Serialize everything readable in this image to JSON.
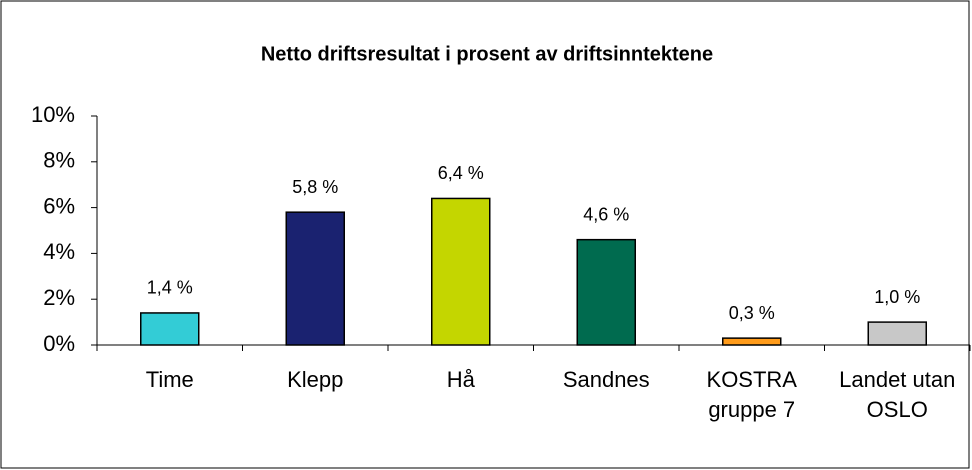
{
  "chart_data": {
    "type": "bar",
    "title": "Netto driftsresultat i prosent av driftsinntektene",
    "categories": [
      "Time",
      "Klepp",
      "Hå",
      "Sandnes",
      "KOSTRA gruppe 7",
      "Landet utan OSLO"
    ],
    "values": [
      1.4,
      5.8,
      6.4,
      4.6,
      0.3,
      1.0
    ],
    "value_labels": [
      "1,4 %",
      "5,8 %",
      "6,4 %",
      "4,6 %",
      "0,3 %",
      "1,0 %"
    ],
    "colors": [
      "#33ccd6",
      "#1a2270",
      "#c4d600",
      "#006b4f",
      "#ff9b1a",
      "#c8c8c8"
    ],
    "ylim": [
      0,
      10
    ],
    "yticks": [
      {
        "value": 0,
        "label": "0%"
      },
      {
        "value": 2,
        "label": "2%"
      },
      {
        "value": 4,
        "label": "4%"
      },
      {
        "value": 6,
        "label": "6%"
      },
      {
        "value": 8,
        "label": "8%"
      },
      {
        "value": 10,
        "label": "10%"
      }
    ],
    "grid": false
  }
}
